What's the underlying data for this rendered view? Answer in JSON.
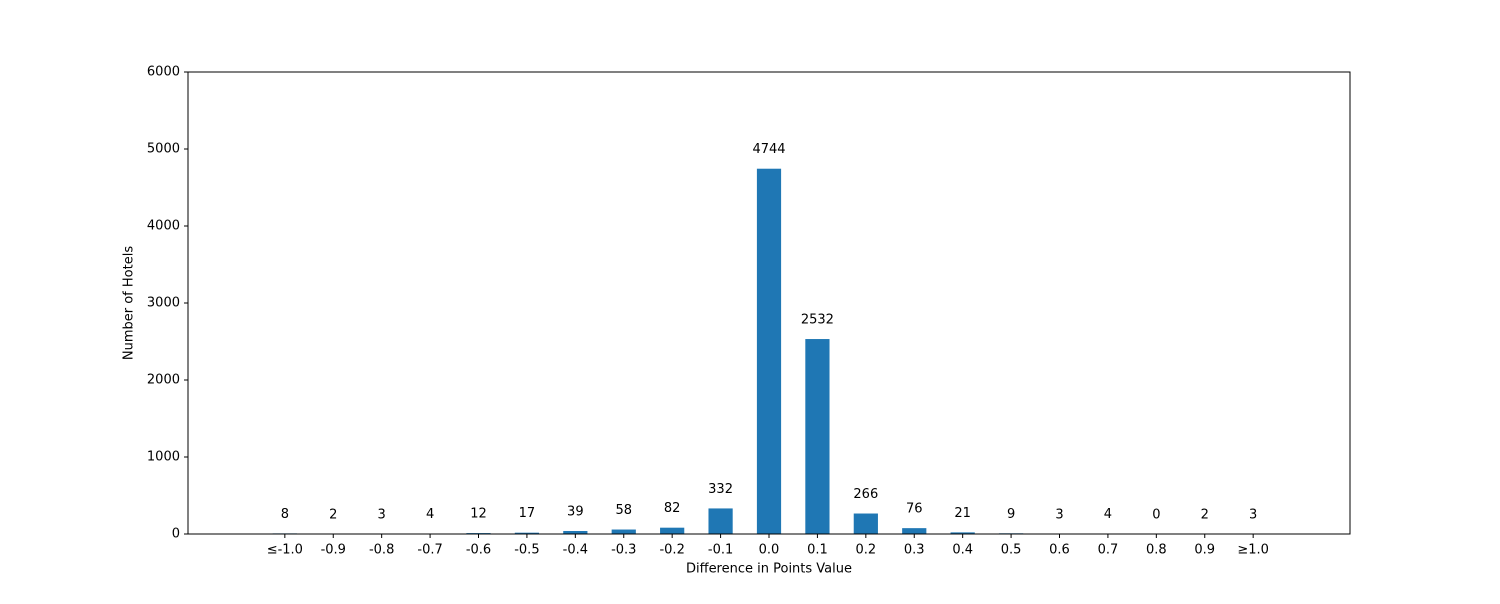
{
  "chart_data": {
    "type": "bar",
    "x_label": "Difference in Points Value",
    "y_label": "Number of Hotels",
    "categories": [
      "≤-1.0",
      "-0.9",
      "-0.8",
      "-0.7",
      "-0.6",
      "-0.5",
      "-0.4",
      "-0.3",
      "-0.2",
      "-0.1",
      "0.0",
      "0.1",
      "0.2",
      "0.3",
      "0.4",
      "0.5",
      "0.6",
      "0.7",
      "0.8",
      "0.9",
      "≥1.0"
    ],
    "values": [
      8,
      2,
      3,
      4,
      12,
      17,
      39,
      58,
      82,
      332,
      4744,
      2532,
      266,
      76,
      21,
      9,
      3,
      4,
      0,
      2,
      3
    ],
    "color": "#1f77b4",
    "ylim": [
      0,
      6000
    ],
    "yticks": [
      0,
      1000,
      2000,
      3000,
      4000,
      5000,
      6000
    ],
    "grid": false
  }
}
